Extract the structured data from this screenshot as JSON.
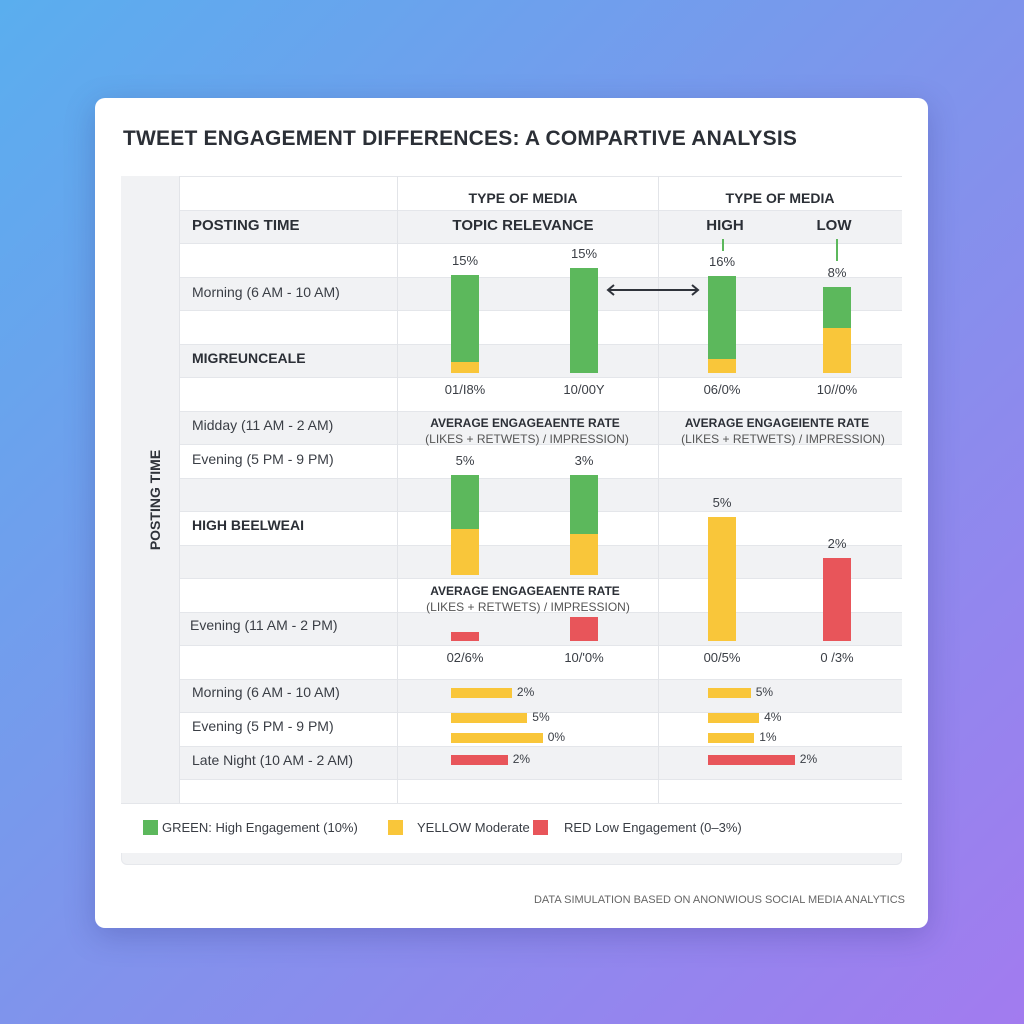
{
  "title": "TWEET ENGAGEMENT DIFFERENCES: A COMPARTIVE ANALYSIS",
  "axis_label": "POSTING TIME",
  "header": {
    "col1_top": "TYPE OF MEDIA",
    "col2_top": "TYPE OF MEDIA",
    "posting_time": "POSTING TIME",
    "col1_sub": "TOPIC RELEVANCE",
    "high": "HIGH",
    "low": "LOW"
  },
  "rows": [
    "Morning (6 AM - 10 AM)",
    "MIGREUNCEALE",
    "Midday (11 AM - 2 AM)",
    "Evening (5 PM - 9 PM)",
    "HIGH BEELWEAI",
    "Evening (11 AM - 2 PM)",
    "Morning (6 AM - 10 AM)",
    "Evening (5 PM - 9 PM)",
    "Late Night (10 AM - 2 AM)"
  ],
  "metric": {
    "title": "AVERAGE ENGAGEAENTE RATE",
    "formula": "(LIKES + RETWETS) / IMPRESSION)",
    "title_right": "AVERAGE ENGAGEIENTE RATE",
    "formula_right": "(LIKES + RETWETS) / IMPRESSION)"
  },
  "colors": {
    "green": "#5cb85c",
    "yellow": "#f9c63a",
    "red": "#e8555a"
  },
  "chart_data": {
    "type": "bar",
    "section1": {
      "labels": [
        "15%",
        "15%",
        "16%",
        "8%"
      ],
      "bottom_labels": [
        "01/I8%",
        "10/00Y",
        "06/0%",
        "10//0%"
      ],
      "bars": [
        {
          "green": 12.4,
          "yellow": 1.6
        },
        {
          "green": 15,
          "yellow": 0
        },
        {
          "green": 11.9,
          "yellow": 2
        },
        {
          "green": 5.9,
          "yellow": 6.4
        }
      ]
    },
    "section2": {
      "labels": [
        "5%",
        "3%",
        "5%",
        "2%"
      ],
      "bottom_labels": [
        "02/6%",
        "10/'0%",
        "00/5%",
        "0 /3%"
      ],
      "bars": [
        {
          "green": 7.7,
          "yellow": 6.6,
          "red": 0
        },
        {
          "green": 8.4,
          "yellow": 5.9,
          "red": 0
        },
        {
          "green": 0,
          "yellow": 17.7,
          "red": 0
        },
        {
          "green": 0,
          "yellow": 0,
          "red": 11.9
        }
      ],
      "small_red": [
        1.3,
        3.4
      ]
    },
    "horizontal": {
      "left": [
        {
          "value": 8.7,
          "color": "yellow",
          "label": "2%"
        },
        {
          "value": 10.9,
          "color": "yellow",
          "label": "5%"
        },
        {
          "value": 13.1,
          "color": "yellow",
          "label": "0%"
        },
        {
          "value": 8.1,
          "color": "red",
          "label": "2%"
        }
      ],
      "right": [
        {
          "value": 6.1,
          "color": "yellow",
          "label": "5%"
        },
        {
          "value": 7.3,
          "color": "yellow",
          "label": "4%"
        },
        {
          "value": 6.6,
          "color": "yellow",
          "label": "1%"
        },
        {
          "value": 12.4,
          "color": "red",
          "label": "2%"
        }
      ]
    }
  },
  "legend": [
    {
      "color": "green",
      "label": "GREEN: High Engagement (10%)"
    },
    {
      "color": "yellow",
      "label": "YELLOW Moderate"
    },
    {
      "color": "red",
      "label": "RED Low Engagement (0–3%)"
    }
  ],
  "footer": "DATA SIMULATION BASED ON ANONWIOUS SOCIAL MEDIA ANALYTICS"
}
